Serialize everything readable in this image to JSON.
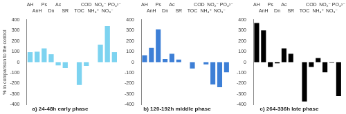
{
  "chart_data": [
    {
      "type": "bar",
      "title": "a) 24-48h early phase",
      "y_label": "% in comparison to the control",
      "categories": [
        "AH",
        "AnH",
        "Ps",
        "Dn",
        "Ac",
        "SR",
        null,
        "TOC",
        "COD",
        "NH₄⁺",
        "NO₂⁻",
        "NO₃⁻",
        "PO₄³⁻"
      ],
      "values": [
        95,
        100,
        130,
        75,
        -30,
        -55,
        null,
        -215,
        -35,
        0,
        165,
        340,
        95
      ],
      "color": "#7dd3f0",
      "ylim": [
        -400,
        400
      ],
      "yticks": [
        -400,
        -300,
        -200,
        -100,
        0,
        100,
        200,
        300,
        400
      ],
      "grid": false
    },
    {
      "type": "bar",
      "title": "b) 120-192h middle phase",
      "categories": [
        "AH",
        "AnH",
        "Ps",
        "Dn",
        "Ac",
        "SR",
        null,
        "TOC",
        "COD",
        "NH₄⁺",
        "NO₂⁻",
        "NO₃⁻",
        "PO₄³⁻"
      ],
      "values": [
        65,
        135,
        310,
        30,
        80,
        25,
        null,
        -60,
        0,
        -20,
        -210,
        -235,
        -95
      ],
      "color": "#3d7fd6",
      "ylim": [
        -400,
        400
      ],
      "yticks": [
        -400,
        -300,
        -200,
        -100,
        0,
        100,
        200,
        300,
        400
      ],
      "grid": false
    },
    {
      "type": "bar",
      "title": "c) 264-336h late phase",
      "categories": [
        "AH",
        "AnH",
        "Ps",
        "Dn",
        "Ac",
        "SR",
        null,
        "TOC",
        "COD",
        "NH₄⁺",
        "NO₂⁻",
        "NO₃⁻",
        "PO₄³⁻"
      ],
      "values": [
        370,
        300,
        -45,
        -10,
        130,
        80,
        null,
        -370,
        -45,
        40,
        -95,
        -5,
        -320
      ],
      "color": "#000000",
      "ylim": [
        -400,
        400
      ],
      "yticks": [
        -400,
        -300,
        -200,
        -100,
        0,
        100,
        200,
        300,
        400
      ],
      "grid": false
    }
  ]
}
